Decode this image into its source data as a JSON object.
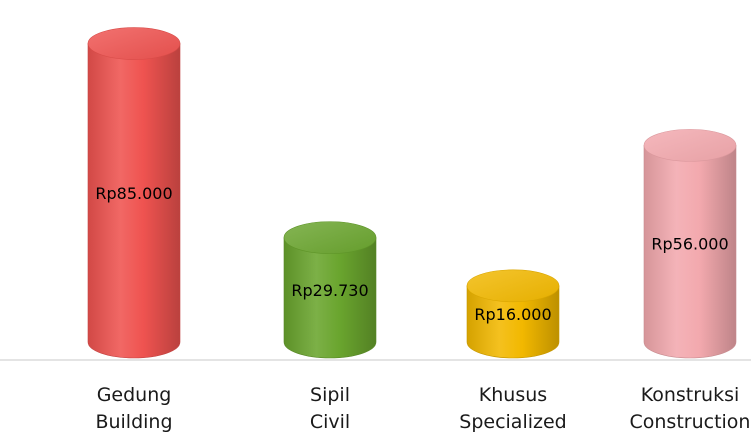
{
  "chart_data": {
    "type": "bar",
    "style": "3d-cylinder",
    "categories": [
      [
        "Gedung",
        "Building"
      ],
      [
        "Sipil",
        "Civil"
      ],
      [
        "Khusus",
        "Specialized"
      ],
      [
        "Konstruksi",
        "Construction"
      ]
    ],
    "values": [
      85000,
      29730,
      16000,
      56000
    ],
    "data_labels": [
      "Rp85.000",
      "Rp29.730",
      "Rp16.000",
      "Rp56.000"
    ],
    "colors": [
      "#ef5350",
      "#6aa52e",
      "#f2b800",
      "#f3a9ae"
    ],
    "ylim": [
      0,
      90000
    ],
    "grid": false,
    "legend": false
  }
}
